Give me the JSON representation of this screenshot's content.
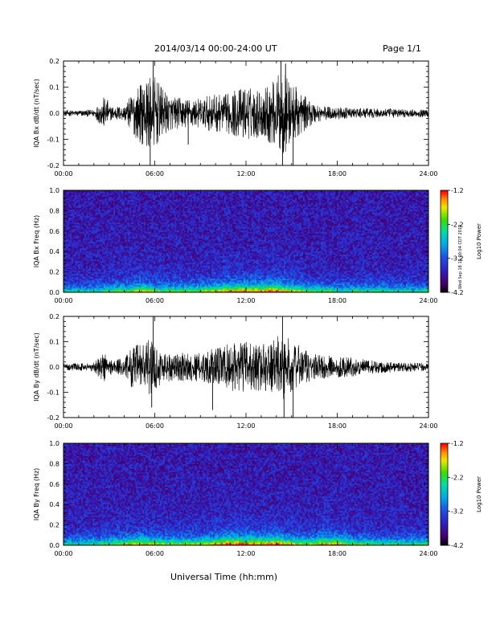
{
  "header": {
    "title": "2014/03/14  00:00-24:00 UT",
    "page": "Page 1/1"
  },
  "footer": {
    "xlabel": "Universal Time (hh:mm)",
    "stamp": "Wed Sep 18 15:00:04 CDT 2019"
  },
  "colors": {
    "trace": "#000000",
    "spectrogram_low": "#1a1a8c",
    "spectrogram_high": "#ff0000"
  },
  "chart_data": [
    {
      "type": "line",
      "title": "",
      "xlabel": "",
      "ylabel": "IQA Bx dB/dt (nT/sec)",
      "xlim": [
        0,
        24
      ],
      "ylim": [
        -0.2,
        0.2
      ],
      "xticks": [
        "00:00",
        "06:00",
        "12:00",
        "18:00",
        "24:00"
      ],
      "yticks": [
        "-0.2",
        "-0.1",
        "0.0",
        "0.1",
        "0.2"
      ],
      "envelope": {
        "x": [
          0,
          1,
          2,
          2.7,
          3,
          4,
          4.5,
          5,
          5.5,
          6,
          6.5,
          7,
          8,
          9,
          10,
          10.5,
          11,
          11.5,
          12,
          12.5,
          13,
          13.5,
          14,
          14.3,
          14.6,
          15,
          15.5,
          16,
          17,
          18,
          19,
          20,
          21,
          22,
          23,
          24
        ],
        "amp": [
          0.012,
          0.012,
          0.015,
          0.07,
          0.03,
          0.03,
          0.08,
          0.12,
          0.14,
          0.15,
          0.1,
          0.07,
          0.06,
          0.06,
          0.08,
          0.07,
          0.09,
          0.1,
          0.11,
          0.1,
          0.1,
          0.12,
          0.14,
          0.18,
          0.16,
          0.12,
          0.1,
          0.06,
          0.03,
          0.025,
          0.02,
          0.02,
          0.018,
          0.018,
          0.015,
          0.015
        ]
      },
      "spikes": [
        {
          "x": 2.9,
          "y": 0.05
        },
        {
          "x": 5.9,
          "y": 0.2
        },
        {
          "x": 5.7,
          "y": -0.2
        },
        {
          "x": 8.2,
          "y": -0.12
        },
        {
          "x": 14.3,
          "y": 0.2
        },
        {
          "x": 14.4,
          "y": -0.2
        },
        {
          "x": 14.6,
          "y": 0.19
        },
        {
          "x": 15.1,
          "y": -0.2
        }
      ]
    },
    {
      "type": "heatmap",
      "title": "",
      "xlabel": "",
      "ylabel": "IQA Bx Freq (Hz)",
      "colorbar_label": "Log10 Power",
      "xlim": [
        0,
        24
      ],
      "ylim": [
        0,
        1.0
      ],
      "clim": [
        -4.2,
        -1.2
      ],
      "xticks": [
        "00:00",
        "06:00",
        "12:00",
        "18:00",
        "24:00"
      ],
      "yticks": [
        "0.0",
        "0.2",
        "0.4",
        "0.6",
        "0.8",
        "1.0"
      ],
      "cticks": [
        "-1.2",
        "-2.2",
        "-3.2",
        "-4.2"
      ],
      "activity": {
        "x": [
          0,
          2,
          3,
          4.5,
          5,
          6,
          7,
          9,
          10,
          11,
          12,
          13,
          14,
          15,
          16,
          18,
          20,
          22,
          24
        ],
        "level": [
          0.2,
          0.25,
          0.35,
          0.5,
          0.6,
          0.45,
          0.4,
          0.45,
          0.6,
          0.7,
          0.75,
          0.75,
          0.8,
          0.6,
          0.4,
          0.3,
          0.3,
          0.25,
          0.25
        ]
      }
    },
    {
      "type": "line",
      "title": "",
      "xlabel": "",
      "ylabel": "IQA By dB/dt (nT/sec)",
      "xlim": [
        0,
        24
      ],
      "ylim": [
        -0.2,
        0.2
      ],
      "xticks": [
        "00:00",
        "06:00",
        "12:00",
        "18:00",
        "24:00"
      ],
      "yticks": [
        "-0.2",
        "-0.1",
        "0.0",
        "0.1",
        "0.2"
      ],
      "envelope": {
        "x": [
          0,
          1,
          2,
          2.7,
          3,
          4,
          4.5,
          5,
          5.5,
          6,
          6.5,
          7,
          8,
          9,
          10,
          10.5,
          11,
          11.5,
          12,
          12.5,
          13,
          13.5,
          14,
          14.3,
          14.6,
          15,
          15.5,
          16,
          17,
          18,
          19,
          20,
          21,
          22,
          23,
          24
        ],
        "amp": [
          0.015,
          0.015,
          0.02,
          0.07,
          0.035,
          0.035,
          0.09,
          0.1,
          0.12,
          0.1,
          0.07,
          0.06,
          0.06,
          0.06,
          0.08,
          0.09,
          0.1,
          0.1,
          0.11,
          0.1,
          0.1,
          0.1,
          0.12,
          0.15,
          0.14,
          0.1,
          0.09,
          0.07,
          0.05,
          0.045,
          0.04,
          0.03,
          0.025,
          0.02,
          0.02,
          0.015
        ]
      },
      "spikes": [
        {
          "x": 5.9,
          "y": 0.2
        },
        {
          "x": 5.8,
          "y": -0.16
        },
        {
          "x": 9.8,
          "y": -0.17
        },
        {
          "x": 14.4,
          "y": 0.2
        },
        {
          "x": 14.5,
          "y": -0.2
        },
        {
          "x": 15.1,
          "y": -0.2
        }
      ]
    },
    {
      "type": "heatmap",
      "title": "",
      "xlabel": "",
      "ylabel": "IQA By Freq (Hz)",
      "colorbar_label": "Log10 Power",
      "xlim": [
        0,
        24
      ],
      "ylim": [
        0,
        1.0
      ],
      "clim": [
        -4.2,
        -1.2
      ],
      "xticks": [
        "00:00",
        "06:00",
        "12:00",
        "18:00",
        "24:00"
      ],
      "yticks": [
        "0.0",
        "0.2",
        "0.4",
        "0.6",
        "0.8",
        "1.0"
      ],
      "cticks": [
        "-1.2",
        "-2.2",
        "-3.2",
        "-4.2"
      ],
      "activity": {
        "x": [
          0,
          2,
          3,
          4.5,
          5,
          6,
          7,
          9,
          10,
          11,
          12,
          13,
          14,
          15,
          16,
          17,
          18,
          19,
          20,
          22,
          24
        ],
        "level": [
          0.25,
          0.3,
          0.4,
          0.55,
          0.65,
          0.5,
          0.45,
          0.5,
          0.7,
          0.85,
          0.8,
          0.75,
          0.85,
          0.6,
          0.45,
          0.7,
          0.7,
          0.4,
          0.35,
          0.3,
          0.3
        ]
      }
    }
  ]
}
